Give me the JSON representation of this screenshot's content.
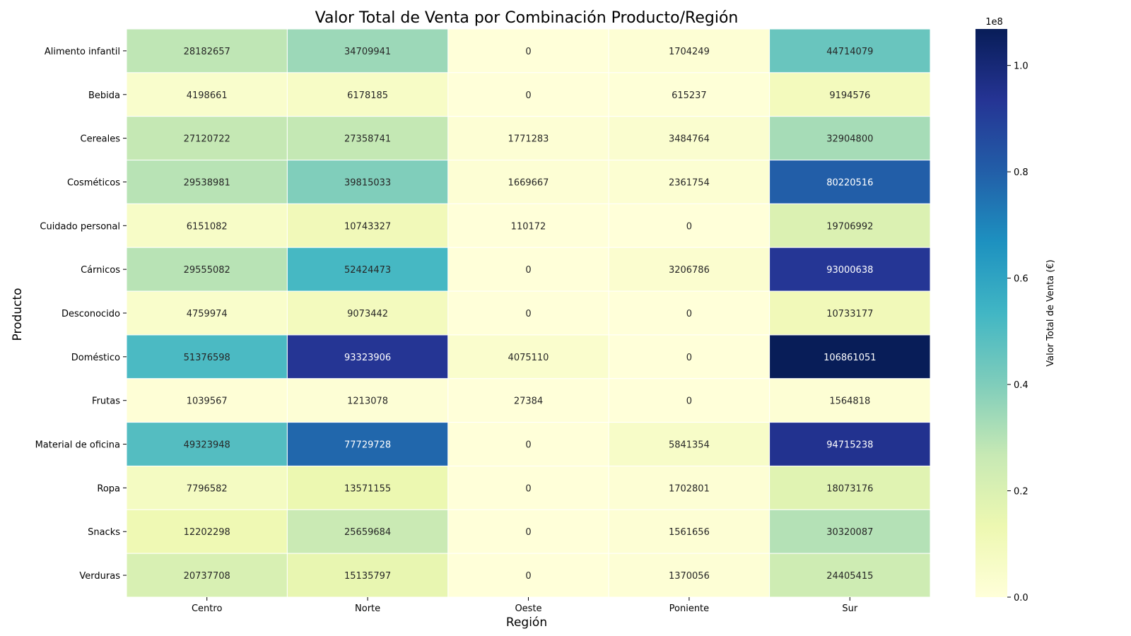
{
  "chart_data": {
    "type": "heatmap",
    "title": "Valor Total de Venta por Combinación Producto/Región",
    "xlabel": "Región",
    "ylabel": "Producto",
    "x_categories": [
      "Centro",
      "Norte",
      "Oeste",
      "Poniente",
      "Sur"
    ],
    "y_categories": [
      "Alimento infantil",
      "Bebida",
      "Cereales",
      "Cosméticos",
      "Cuidado personal",
      "Cárnicos",
      "Desconocido",
      "Doméstico",
      "Frutas",
      "Material de oficina",
      "Ropa",
      "Snacks",
      "Verduras"
    ],
    "values": [
      [
        28182657,
        34709941,
        0,
        1704249,
        44714079
      ],
      [
        4198661,
        6178185,
        0,
        615237,
        9194576
      ],
      [
        27120722,
        27358741,
        1771283,
        3484764,
        32904800
      ],
      [
        29538981,
        39815033,
        1669667,
        2361754,
        80220516
      ],
      [
        6151082,
        10743327,
        110172,
        0,
        19706992
      ],
      [
        29555082,
        52424473,
        0,
        3206786,
        93000638
      ],
      [
        4759974,
        9073442,
        0,
        0,
        10733177
      ],
      [
        51376598,
        93323906,
        4075110,
        0,
        106861051
      ],
      [
        1039567,
        1213078,
        27384,
        0,
        1564818
      ],
      [
        49323948,
        77729728,
        0,
        5841354,
        94715238
      ],
      [
        7796582,
        13571155,
        0,
        1702801,
        18073176
      ],
      [
        12202298,
        25659684,
        0,
        1561656,
        30320087
      ],
      [
        20737708,
        15135797,
        0,
        1370056,
        24405415
      ]
    ],
    "colormap": "YlGnBu",
    "vmin": 0,
    "vmax": 106861051,
    "colorbar": {
      "label": "Valor Total de Venta (€)",
      "offset_text": "1e8",
      "ticks": [
        0.0,
        0.2,
        0.4,
        0.6,
        0.8,
        1.0
      ],
      "tick_labels": [
        "0.0",
        "0.2",
        "0.4",
        "0.6",
        "0.8",
        "1.0"
      ]
    },
    "annotations": true,
    "grid_lines_color": "#ffffff"
  }
}
